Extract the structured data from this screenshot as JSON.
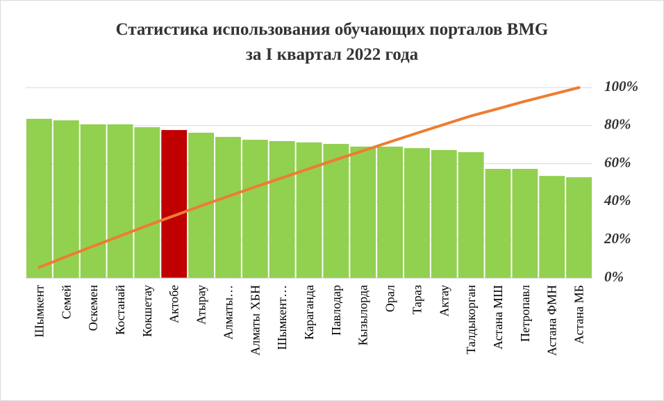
{
  "chart_data": {
    "type": "pareto",
    "title": [
      "Статистика использования обучающих порталов BMG",
      "за I квартал 2022 года"
    ],
    "categories": [
      "Шымкент",
      "Семей",
      "Оскемен",
      "Костанай",
      "Кокшетау",
      "Актобе",
      "Атырау",
      "Алматы…",
      "Алматы ХБН",
      "Шымкент…",
      "Караганда",
      "Павлодар",
      "Кызылорда",
      "Орал",
      "Тараз",
      "Актау",
      "Талдыкорган",
      "Астана МШ",
      "Петропавл",
      "Астана ФМН",
      "Астана МБ"
    ],
    "series": [
      {
        "type": "bar",
        "colors": [
          "#92d050",
          "#92d050",
          "#92d050",
          "#92d050",
          "#92d050",
          "#c00000",
          "#92d050",
          "#92d050",
          "#92d050",
          "#92d050",
          "#92d050",
          "#92d050",
          "#92d050",
          "#92d050",
          "#92d050",
          "#92d050",
          "#92d050",
          "#92d050",
          "#92d050",
          "#92d050",
          "#92d050"
        ],
        "values": [
          83.6,
          82.8,
          80.7,
          80.7,
          79.2,
          77.7,
          76.3,
          74.1,
          72.6,
          71.9,
          71.2,
          70.4,
          69.0,
          69.0,
          68.2,
          67.2,
          66.1,
          57.3,
          57.3,
          53.6,
          52.9
        ],
        "axis": "y2"
      },
      {
        "type": "line",
        "color": "#ed7d31",
        "axis": "y2",
        "values": [
          5.6,
          11.2,
          16.7,
          22.1,
          27.5,
          32.7,
          37.9,
          42.9,
          47.8,
          52.6,
          57.4,
          62.2,
          66.8,
          71.5,
          76.1,
          80.6,
          85.1,
          88.9,
          92.8,
          96.4,
          100
        ]
      }
    ],
    "y2lim": [
      0,
      100
    ],
    "y2ticks": [
      {
        "value": 0,
        "label": "0%"
      },
      {
        "value": 20,
        "label": "20%"
      },
      {
        "value": 40,
        "label": "40%"
      },
      {
        "value": 60,
        "label": "60%"
      },
      {
        "value": 80,
        "label": "80%"
      },
      {
        "value": 100,
        "label": "100%"
      }
    ],
    "grid": true
  }
}
